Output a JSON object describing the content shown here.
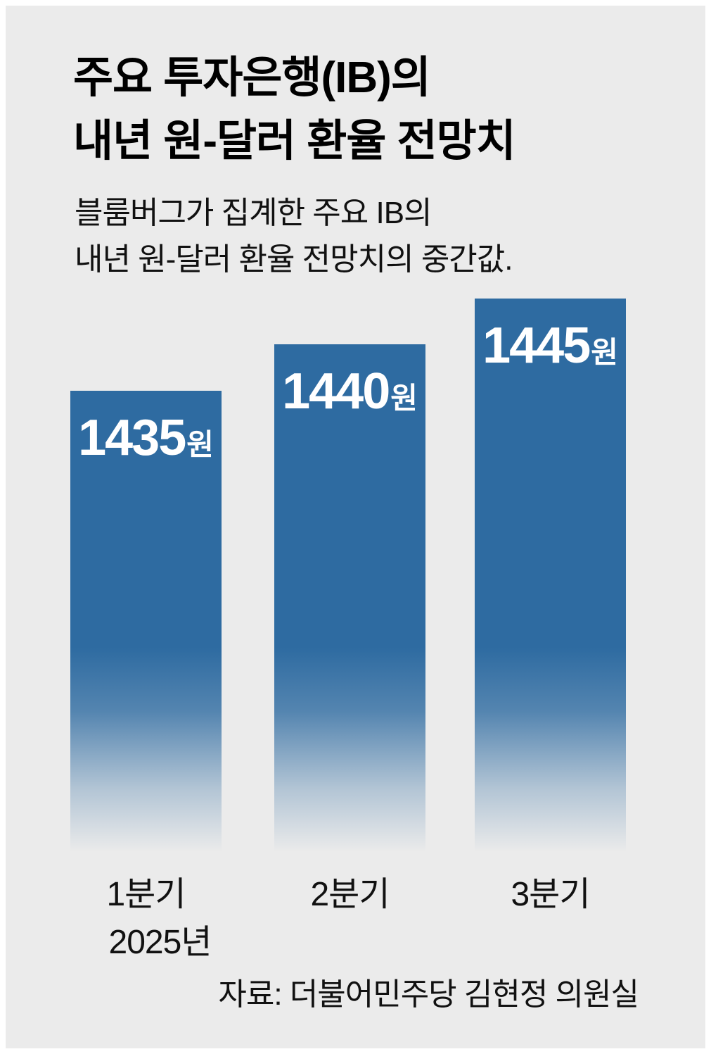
{
  "header": {
    "title_line1": "주요 투자은행(IB)의",
    "title_line2": "내년 원-달러 환율 전망치",
    "subtitle_line1": "블룸버그가 집계한 주요 IB의",
    "subtitle_line2": "내년 원-달러 환율 전망치의 중간값."
  },
  "axis": {
    "unit": "원",
    "year_label": "2025년"
  },
  "footer": {
    "source": "자료: 더불어민주당 김현정 의원실"
  },
  "colors": {
    "bar": "#2e6ba1",
    "panel_background": "#ebebeb",
    "value_label": "#ffffff"
  },
  "chart_data": {
    "type": "bar",
    "categories": [
      "1분기",
      "2분기",
      "3분기"
    ],
    "values": [
      1435,
      1440,
      1445
    ],
    "unit": "원",
    "title": "주요 투자은행(IB)의 내년 원-달러 환율 전망치",
    "subtitle": "블룸버그가 집계한 주요 IB의 내년 원-달러 환율 전망치의 중간값.",
    "source": "자료: 더불어민주당 김현정 의원실",
    "xlabel": "2025년",
    "ylabel": "",
    "ylim": [
      1385,
      1448
    ],
    "baseline_value": 1385,
    "grid": false,
    "legend": false,
    "value_labels_shown": true
  }
}
